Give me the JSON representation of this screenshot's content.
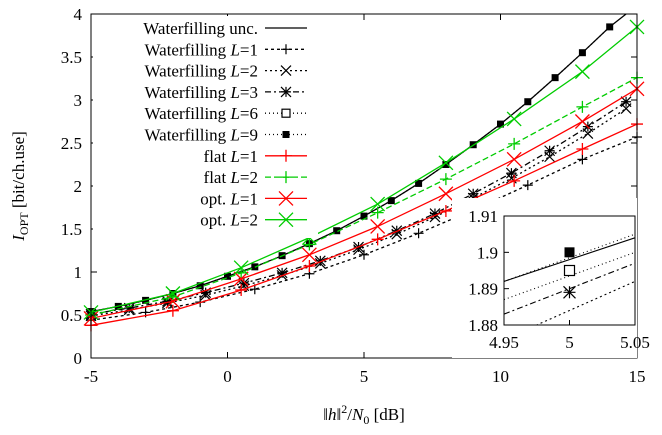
{
  "chart_data": {
    "type": "line",
    "xlabel": {
      "pre": "‖",
      "h": "h",
      "post1": "‖",
      "sup": "2",
      "slash": "/",
      "N": "N",
      "sub": "0",
      "unit": " [dB]"
    },
    "ylabel": {
      "I": "I",
      "sub": "OPT",
      "unit": " [bit/ch.use]"
    },
    "xlim": [
      -5,
      15
    ],
    "ylim": [
      0,
      4
    ],
    "xticks": [
      "-5",
      "0",
      "5",
      "10",
      "15"
    ],
    "yticks": [
      "0",
      "0.5",
      "1",
      "1.5",
      "2",
      "2.5",
      "3",
      "3.5",
      "4"
    ],
    "legend_position": "top-left",
    "series": [
      {
        "name": "Waterfilling unc.",
        "label": {
          "pre": "Waterfilling unc.",
          "var": "",
          "post": ""
        },
        "color": "#000000",
        "dash": "",
        "marker": "none",
        "x": [
          -5,
          -4,
          -3,
          -2,
          -1,
          0,
          1,
          2,
          3,
          4,
          5,
          6,
          7,
          8,
          9,
          10,
          11,
          12,
          13,
          14,
          14.6
        ],
        "y": [
          0.54,
          0.6,
          0.67,
          0.75,
          0.84,
          0.95,
          1.06,
          1.19,
          1.33,
          1.48,
          1.65,
          1.83,
          2.03,
          2.25,
          2.48,
          2.72,
          2.98,
          3.26,
          3.55,
          3.85,
          4.0
        ]
      },
      {
        "name": "Waterfilling L=1",
        "label": {
          "pre": "Waterfilling ",
          "var": "L",
          "post": "=1"
        },
        "color": "#000000",
        "dash": "3,3",
        "marker": "plus",
        "x": [
          -5,
          -3,
          -1,
          1,
          3,
          5,
          7,
          9,
          11,
          13,
          15
        ],
        "y": [
          0.44,
          0.53,
          0.65,
          0.8,
          0.98,
          1.2,
          1.45,
          1.72,
          2.01,
          2.31,
          2.57
        ]
      },
      {
        "name": "Waterfilling L=2",
        "label": {
          "pre": "Waterfilling ",
          "var": "L",
          "post": "=2"
        },
        "color": "#000000",
        "dash": "2,3",
        "marker": "x",
        "x": [
          -5,
          -3.6,
          -2.2,
          -0.8,
          0.6,
          2,
          3.4,
          4.8,
          6.2,
          7.6,
          9,
          10.4,
          11.8,
          13.2,
          14.6
        ],
        "y": [
          0.49,
          0.56,
          0.64,
          0.73,
          0.84,
          0.96,
          1.1,
          1.26,
          1.44,
          1.64,
          1.86,
          2.09,
          2.34,
          2.61,
          2.9
        ]
      },
      {
        "name": "Waterfilling L=3",
        "label": {
          "pre": "Waterfilling ",
          "var": "L",
          "post": "=3"
        },
        "color": "#000000",
        "dash": "6,3,2,3",
        "marker": "star",
        "x": [
          -5,
          -3.6,
          -2.2,
          -0.8,
          0.6,
          2,
          3.4,
          4.8,
          6.2,
          7.6,
          9,
          10.4,
          11.8,
          13.2,
          14.6
        ],
        "y": [
          0.51,
          0.58,
          0.66,
          0.76,
          0.87,
          0.99,
          1.13,
          1.29,
          1.48,
          1.68,
          1.91,
          2.15,
          2.41,
          2.69,
          2.98
        ]
      },
      {
        "name": "Waterfilling L=6",
        "label": {
          "pre": "Waterfilling ",
          "var": "L",
          "post": "=6"
        },
        "color": "#000000",
        "dash": "1,3",
        "marker": "box",
        "x": [],
        "y": []
      },
      {
        "name": "Waterfilling L=9",
        "label": {
          "pre": "Waterfilling ",
          "var": "L",
          "post": "=9"
        },
        "color": "#000000",
        "dash": "1,3",
        "marker": "fillbox",
        "x": [
          -5,
          -4,
          -3,
          -2,
          -1,
          0,
          1,
          2,
          3,
          4,
          5,
          6,
          7,
          8,
          9,
          10,
          11,
          12,
          13,
          14
        ],
        "y": [
          0.54,
          0.6,
          0.67,
          0.75,
          0.84,
          0.95,
          1.06,
          1.19,
          1.33,
          1.48,
          1.65,
          1.83,
          2.03,
          2.25,
          2.48,
          2.72,
          2.98,
          3.26,
          3.55,
          3.85
        ]
      },
      {
        "name": "flat L=1",
        "label": {
          "pre": "flat ",
          "var": "L",
          "post": "=1"
        },
        "color": "#ff0000",
        "dash": "",
        "marker": "plus",
        "x": [
          -5,
          -2,
          0.5,
          3,
          5.5,
          8,
          10.5,
          13,
          15
        ],
        "y": [
          0.38,
          0.55,
          0.79,
          1.07,
          1.38,
          1.71,
          2.06,
          2.43,
          2.72
        ]
      },
      {
        "name": "flat L=2",
        "label": {
          "pre": "flat ",
          "var": "L",
          "post": "=2"
        },
        "color": "#00cc00",
        "dash": "6,3",
        "marker": "plus",
        "x": [
          -5,
          -2,
          0.5,
          3,
          5.5,
          8,
          10.5,
          13,
          15
        ],
        "y": [
          0.5,
          0.71,
          0.99,
          1.32,
          1.69,
          2.08,
          2.49,
          2.92,
          3.26
        ]
      },
      {
        "name": "opt. L=1",
        "label": {
          "pre": "opt. ",
          "var": "L",
          "post": "=1"
        },
        "color": "#ff0000",
        "dash": "",
        "marker": "x",
        "x": [
          -5,
          -2,
          0.5,
          3,
          5.5,
          8,
          10.5,
          13,
          15
        ],
        "y": [
          0.46,
          0.66,
          0.92,
          1.2,
          1.53,
          1.91,
          2.31,
          2.75,
          3.13
        ]
      },
      {
        "name": "opt. L=2",
        "label": {
          "pre": "opt. ",
          "var": "L",
          "post": "=2"
        },
        "color": "#00cc00",
        "dash": "",
        "marker": "x",
        "x": [
          -5,
          -2,
          0.5,
          3,
          5.5,
          8,
          10.5,
          13,
          15
        ],
        "y": [
          0.53,
          0.75,
          1.05,
          1.4,
          1.79,
          2.27,
          2.78,
          3.33,
          3.85
        ]
      }
    ],
    "inset": {
      "xlim": [
        4.95,
        5.05
      ],
      "ylim": [
        1.88,
        1.91
      ],
      "xticks": [
        "4.95",
        "5",
        "5.05"
      ],
      "yticks": [
        "1.88",
        "1.89",
        "1.9",
        "1.91"
      ],
      "series": [
        {
          "name": "Waterfilling unc.",
          "dash": "",
          "x": [
            4.95,
            5.05
          ],
          "y": [
            1.892,
            1.904
          ]
        },
        {
          "name": "Waterfilling L=9",
          "dash": "1,3",
          "x": [
            4.95,
            5.05
          ],
          "y": [
            1.892,
            1.905
          ]
        },
        {
          "name": "Waterfilling L=6",
          "dash": "1,3",
          "x": [
            4.95,
            5.05
          ],
          "y": [
            1.887,
            1.9
          ]
        },
        {
          "name": "Waterfilling L=3",
          "dash": "6,3,2,3",
          "x": [
            4.95,
            5.05
          ],
          "y": [
            1.883,
            1.897
          ]
        },
        {
          "name": "Waterfilling L=2",
          "dash": "2,3",
          "x": [
            4.95,
            5.05
          ],
          "y": [
            1.876,
            1.892
          ]
        }
      ],
      "points": [
        {
          "name": "Waterfilling L=9",
          "marker": "fillbox",
          "x": 5,
          "y": 1.9
        },
        {
          "name": "Waterfilling L=6",
          "marker": "box",
          "x": 5,
          "y": 1.895
        },
        {
          "name": "Waterfilling L=3",
          "marker": "star",
          "x": 5,
          "y": 1.889
        }
      ]
    }
  }
}
